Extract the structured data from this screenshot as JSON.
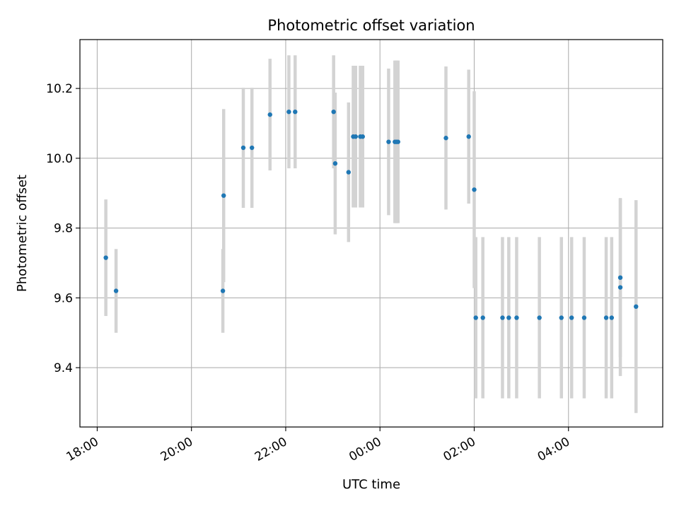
{
  "chart_data": {
    "type": "scatter",
    "title": "Photometric offset variation",
    "xlabel": "UTC time",
    "ylabel": "Photometric offset",
    "x_tick_labels": [
      "18:00",
      "20:00",
      "22:00",
      "00:00",
      "02:00",
      "04:00"
    ],
    "y_tick_labels": [
      "9.4",
      "9.6",
      "9.8",
      "10.0",
      "10.2"
    ],
    "x_tick_times": [
      "18:00",
      "20:00",
      "22:00",
      "00:00",
      "02:00",
      "04:00"
    ],
    "y_tick_values": [
      9.4,
      9.6,
      9.8,
      10.0,
      10.2
    ],
    "xlim": [
      "17:38",
      "06:00"
    ],
    "ylim": [
      9.23,
      10.34
    ],
    "grid": true,
    "legend": "none",
    "colors": {
      "point": "#1f77b4",
      "errorbar": "#d3d3d3",
      "grid": "#b0b0b0"
    },
    "points": [
      {
        "x": "18:11",
        "y": 9.715,
        "err": 0.167
      },
      {
        "x": "18:24",
        "y": 9.62,
        "err": 0.12
      },
      {
        "x": "20:40",
        "y": 9.62,
        "err": 0.12
      },
      {
        "x": "20:41",
        "y": 9.893,
        "err": 0.248
      },
      {
        "x": "21:06",
        "y": 10.03,
        "err": 0.172
      },
      {
        "x": "21:17",
        "y": 10.03,
        "err": 0.172
      },
      {
        "x": "21:40",
        "y": 10.125,
        "err": 0.16
      },
      {
        "x": "22:04",
        "y": 10.133,
        "err": 0.162
      },
      {
        "x": "22:12",
        "y": 10.133,
        "err": 0.162
      },
      {
        "x": "23:01",
        "y": 10.133,
        "err": 0.162
      },
      {
        "x": "23:03",
        "y": 9.985,
        "err": 0.203
      },
      {
        "x": "23:20",
        "y": 9.96,
        "err": 0.2
      },
      {
        "x": "23:26",
        "y": 10.062,
        "err": 0.203
      },
      {
        "x": "23:29",
        "y": 10.062,
        "err": 0.203
      },
      {
        "x": "23:35",
        "y": 10.062,
        "err": 0.203
      },
      {
        "x": "23:38",
        "y": 10.062,
        "err": 0.203
      },
      {
        "x": "00:11",
        "y": 10.047,
        "err": 0.21
      },
      {
        "x": "00:19",
        "y": 10.047,
        "err": 0.233
      },
      {
        "x": "00:21",
        "y": 10.047,
        "err": 0.233
      },
      {
        "x": "00:23",
        "y": 10.047,
        "err": 0.233
      },
      {
        "x": "01:24",
        "y": 10.058,
        "err": 0.205
      },
      {
        "x": "01:53",
        "y": 10.062,
        "err": 0.192
      },
      {
        "x": "02:00",
        "y": 9.91,
        "err": 0.282
      },
      {
        "x": "02:02",
        "y": 9.543,
        "err": 0.231
      },
      {
        "x": "02:11",
        "y": 9.543,
        "err": 0.231
      },
      {
        "x": "02:36",
        "y": 9.543,
        "err": 0.231
      },
      {
        "x": "02:44",
        "y": 9.543,
        "err": 0.231
      },
      {
        "x": "02:54",
        "y": 9.543,
        "err": 0.231
      },
      {
        "x": "03:23",
        "y": 9.543,
        "err": 0.231
      },
      {
        "x": "03:51",
        "y": 9.543,
        "err": 0.231
      },
      {
        "x": "04:04",
        "y": 9.543,
        "err": 0.231
      },
      {
        "x": "04:20",
        "y": 9.543,
        "err": 0.231
      },
      {
        "x": "04:48",
        "y": 9.543,
        "err": 0.231
      },
      {
        "x": "04:55",
        "y": 9.543,
        "err": 0.231
      },
      {
        "x": "05:06",
        "y": 9.658,
        "err": 0.228
      },
      {
        "x": "05:06",
        "y": 9.63,
        "err": 0.254
      },
      {
        "x": "05:26",
        "y": 9.575,
        "err": 0.305
      }
    ]
  }
}
